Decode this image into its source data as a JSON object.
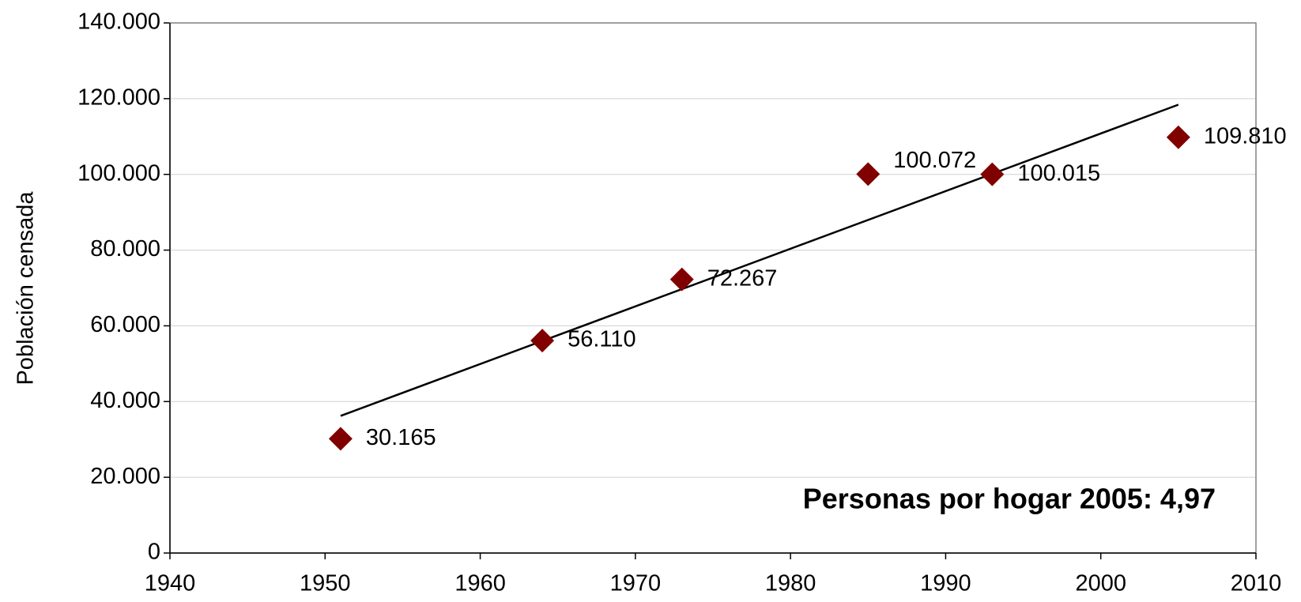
{
  "chart_data": {
    "type": "scatter",
    "x": [
      1951,
      1964,
      1973,
      1985,
      1993,
      2005
    ],
    "values": [
      30165,
      56110,
      72267,
      100072,
      100015,
      109810
    ],
    "value_labels": [
      "30.165",
      "56.110",
      "72.267",
      "100.072",
      "100.015",
      "109.810"
    ],
    "color": "#800000",
    "trendline": {
      "x": [
        1951,
        2005
      ],
      "values": [
        36218,
        118406
      ],
      "color": "#000000"
    },
    "ylabel": "Población censada",
    "annotation": "Personas por hogar 2005: 4,97",
    "xlim": [
      1940,
      2010
    ],
    "xticks": [
      1940,
      1950,
      1960,
      1970,
      1980,
      1990,
      2000,
      2010
    ],
    "ylim": [
      0,
      140000
    ],
    "yticks": [
      0,
      {
        "value": 20000,
        "label": "20.000"
      },
      {
        "value": 40000,
        "label": "40.000"
      },
      {
        "value": 60000,
        "label": "60.000"
      },
      {
        "value": 80000,
        "label": "80.000"
      },
      {
        "value": 100000,
        "label": "100.000"
      },
      {
        "value": 120000,
        "label": "120.000"
      },
      {
        "value": 140000,
        "label": "140.000"
      }
    ],
    "grid": true
  }
}
